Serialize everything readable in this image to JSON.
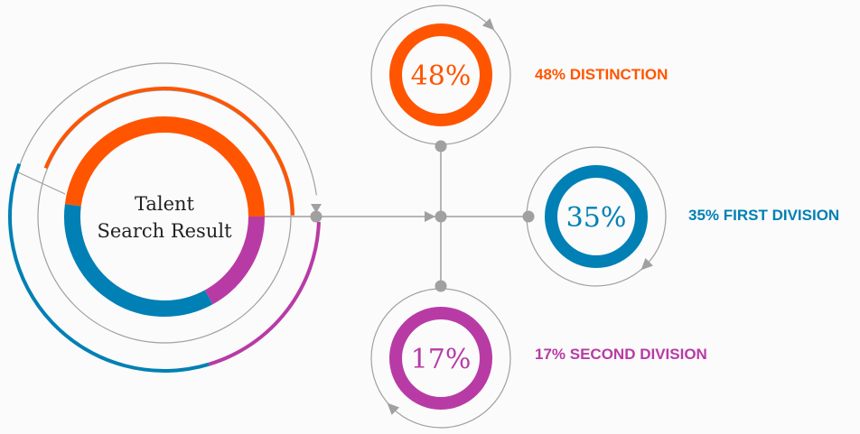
{
  "chart_data": {
    "type": "pie",
    "title": "Talent Search Result",
    "categories": [
      "DISTINCTION",
      "FIRST DIVISION",
      "SECOND DIVISION"
    ],
    "values": [
      48,
      35,
      17
    ],
    "unit": "%",
    "colors": [
      "#FF5500",
      "#0080B4",
      "#B83BA5"
    ],
    "items": [
      {
        "value_label": "48%",
        "label": "48% DISTINCTION",
        "color": "#FF5500"
      },
      {
        "value_label": "35%",
        "label": "35% FIRST DIVISION",
        "color": "#0080B4"
      },
      {
        "value_label": "17%",
        "label": "17% SECOND DIVISION",
        "color": "#B83BA5"
      }
    ],
    "center_title_lines": [
      "Talent",
      "Search Result"
    ]
  },
  "colors": {
    "connector": "#a0a0a0",
    "background": "#fbfbfb"
  }
}
